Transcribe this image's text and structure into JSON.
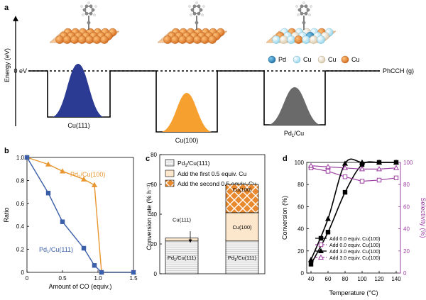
{
  "panel_a": {
    "letter": "a",
    "y_axis_label": "Energy (eV)",
    "zero_label": "0 eV",
    "gas_label": "PhCCH (g)",
    "wells": [
      {
        "label": "Cu(111)",
        "color": "#2b3a93"
      },
      {
        "label": "Cu(100)",
        "color": "#f6a030"
      },
      {
        "label": "Pd",
        "sub": "1",
        "tail": "/Cu",
        "color": "#6a6a6a"
      }
    ],
    "legend": [
      {
        "label": "Pd",
        "color": "#1e7fb8"
      },
      {
        "label": "Cu",
        "color": "#a9dff0"
      },
      {
        "label": "Cu",
        "color": "#efe3cd"
      },
      {
        "label": "Cu",
        "color": "#e87f22"
      }
    ]
  },
  "panel_b": {
    "letter": "b",
    "chart_data": {
      "type": "line",
      "xlabel": "Amount of CO (equiv.)",
      "ylabel": "Ratio",
      "xlim": [
        0,
        1.5
      ],
      "ylim": [
        0,
        1.0
      ],
      "xticks": [
        "0",
        "0.5",
        "1.0",
        "1.5"
      ],
      "yticks": [
        "0",
        "0.2",
        "0.4",
        "0.6",
        "0.8",
        "1.0"
      ],
      "series": [
        {
          "name": "Pd1/Cu(100)",
          "label_main": "Pd",
          "label_sub": "1",
          "label_tail": "/Cu(100)",
          "color": "#e8962f",
          "marker": "triangle",
          "x": [
            0,
            0.3,
            0.5,
            0.8,
            0.95,
            1.05,
            1.5
          ],
          "y": [
            1.0,
            0.94,
            0.88,
            0.81,
            0.76,
            0.0,
            0.0
          ]
        },
        {
          "name": "Pd1/Cu(111)",
          "label_main": "Pd",
          "label_sub": "1",
          "label_tail": "/Cu(111)",
          "color": "#3a5ea8",
          "marker": "square",
          "x": [
            0,
            0.3,
            0.5,
            0.8,
            0.95,
            1.05,
            1.5
          ],
          "y": [
            1.0,
            0.69,
            0.44,
            0.21,
            0.06,
            0.0,
            0.0
          ]
        }
      ]
    }
  },
  "panel_c": {
    "letter": "c",
    "chart_data": {
      "type": "bar",
      "ylabel": "Conversion rate (% h⁻¹)",
      "ylim": [
        0,
        80
      ],
      "yticks": [
        "0",
        "20",
        "40",
        "60",
        "80"
      ],
      "legend": [
        {
          "label_main": "Pd",
          "label_sub": "1",
          "label_tail": "/Cu(111)",
          "pattern": "lines"
        },
        {
          "label": "Add the first 0.5 equiv. Cu",
          "pattern": "plain"
        },
        {
          "label": "Add the second 0.5 equiv. Cu",
          "pattern": "cross"
        }
      ],
      "bars": [
        {
          "segments": [
            {
              "value": 22,
              "label_main": "Pd",
              "label_sub": "1",
              "label_tail": "/Cu(111)",
              "pattern": "lines"
            },
            {
              "value": 2,
              "label": "Cu(111)",
              "pattern": "plain"
            }
          ]
        },
        {
          "segments": [
            {
              "value": 22,
              "label_main": "Pd",
              "label_sub": "1",
              "label_tail": "/Cu(111)",
              "pattern": "lines"
            },
            {
              "value": 19,
              "label": "Cu(100)",
              "pattern": "plain"
            },
            {
              "value": 19,
              "label": "Cu(100)",
              "pattern": "cross"
            }
          ]
        }
      ]
    }
  },
  "panel_d": {
    "letter": "d",
    "chart_data": {
      "type": "line",
      "xlabel": "Temperature (°C)",
      "ylabel": "Conversion (%)",
      "ylabel_right": "Selectivity (%)",
      "xlim": [
        40,
        140
      ],
      "ylim": [
        0,
        100
      ],
      "xticks": [
        "40",
        "60",
        "80",
        "100",
        "120",
        "140"
      ],
      "yticks": [
        "0",
        "20",
        "40",
        "60",
        "80",
        "100"
      ],
      "yticks_right": [
        "0",
        "20",
        "40",
        "60",
        "80",
        "100"
      ],
      "series": [
        {
          "name": "Add 0.0 equiv. Cu(100)",
          "kind": "conversion",
          "color": "#000000",
          "marker": "square",
          "filled": true,
          "x": [
            40,
            60,
            80,
            100,
            120,
            140
          ],
          "y": [
            8,
            37,
            73,
            98,
            100,
            100
          ]
        },
        {
          "name": "Add 0.0 equiv. Cu(100)",
          "kind": "selectivity",
          "color": "#9b3fa0",
          "marker": "square",
          "filled": false,
          "x": [
            40,
            60,
            80,
            100,
            120,
            140
          ],
          "y": [
            95,
            92,
            87,
            83,
            84,
            86
          ]
        },
        {
          "name": "Add 3.0 equiv. Cu(100)",
          "kind": "conversion",
          "color": "#000000",
          "marker": "triangle",
          "filled": true,
          "x": [
            40,
            60,
            80,
            100,
            120,
            140
          ],
          "y": [
            12,
            49,
            99,
            100,
            100,
            100
          ]
        },
        {
          "name": "Add 3.0 equiv. Cu(100)",
          "kind": "selectivity",
          "color": "#9b3fa0",
          "marker": "triangle",
          "filled": false,
          "x": [
            40,
            60,
            80,
            100,
            120,
            140
          ],
          "y": [
            97,
            96,
            95,
            94,
            94,
            95
          ]
        }
      ]
    }
  }
}
